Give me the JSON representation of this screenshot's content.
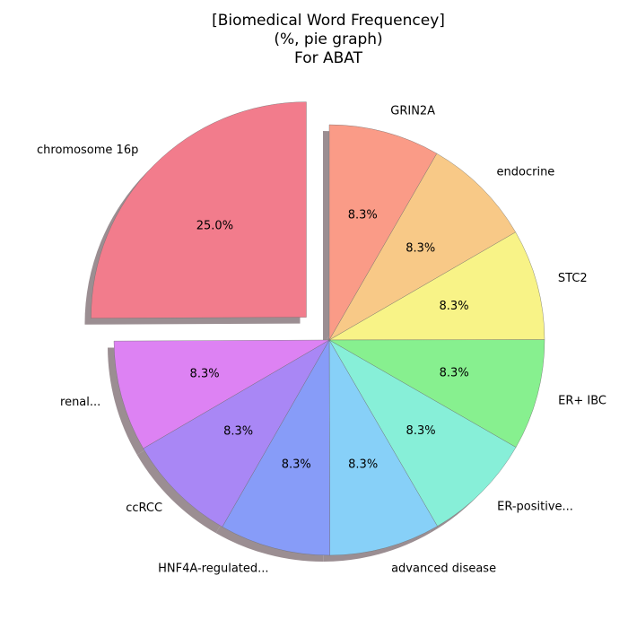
{
  "chart_data": {
    "type": "pie",
    "title_lines": [
      "[Biomedical Word Frequencey]",
      "(%, pie graph)",
      "For ABAT"
    ],
    "slices": [
      {
        "label": "GRIN2A",
        "value": 8.3,
        "pct_label": "8.3%",
        "color": "#fa9b87",
        "exploded": false
      },
      {
        "label": "endocrine",
        "value": 8.3,
        "pct_label": "8.3%",
        "color": "#f8c987",
        "exploded": false
      },
      {
        "label": "STC2",
        "value": 8.3,
        "pct_label": "8.3%",
        "color": "#f8f387",
        "exploded": false
      },
      {
        "label": "ER+ IBC",
        "value": 8.3,
        "pct_label": "8.3%",
        "color": "#87f08f",
        "exploded": false
      },
      {
        "label": "ER-positive...",
        "value": 8.3,
        "pct_label": "8.3%",
        "color": "#87efd8",
        "exploded": false
      },
      {
        "label": "advanced disease",
        "value": 8.3,
        "pct_label": "8.3%",
        "color": "#87d0f8",
        "exploded": false
      },
      {
        "label": "HNF4A-regulated...",
        "value": 8.3,
        "pct_label": "8.3%",
        "color": "#879cf8",
        "exploded": false
      },
      {
        "label": "ccRCC",
        "value": 8.3,
        "pct_label": "8.3%",
        "color": "#a987f5",
        "exploded": false
      },
      {
        "label": "renal...",
        "value": 8.3,
        "pct_label": "8.3%",
        "color": "#dd82f3",
        "exploded": false
      },
      {
        "label": "chromosome 16p",
        "value": 25.0,
        "pct_label": "25.0%",
        "color": "#f27c8c",
        "exploded": true
      }
    ],
    "start_angle_deg": 90,
    "direction": "clockwise",
    "shadow": true
  }
}
